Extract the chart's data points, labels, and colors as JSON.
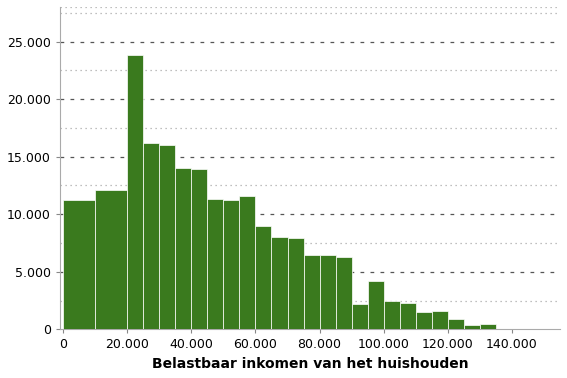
{
  "bar_left_edges": [
    0,
    10000,
    20000,
    25000,
    30000,
    35000,
    40000,
    45000,
    50000,
    55000,
    60000,
    65000,
    70000,
    75000,
    80000,
    85000,
    90000,
    95000,
    100000,
    105000,
    110000,
    115000,
    120000,
    125000,
    130000,
    135000,
    140000,
    145000,
    150000
  ],
  "bar_widths": [
    10000,
    10000,
    5000,
    5000,
    5000,
    5000,
    5000,
    5000,
    5000,
    5000,
    5000,
    5000,
    5000,
    5000,
    5000,
    5000,
    5000,
    5000,
    5000,
    5000,
    5000,
    5000,
    5000,
    5000,
    5000,
    5000,
    5000,
    5000,
    5000
  ],
  "bar_heights": [
    11200,
    12100,
    23800,
    16200,
    16000,
    14000,
    13900,
    11300,
    11200,
    11600,
    9000,
    8000,
    7900,
    6500,
    6500,
    6300,
    2200,
    4200,
    2500,
    2300,
    1500,
    1600,
    900,
    400,
    500,
    0,
    0,
    0,
    0
  ],
  "bar_color": "#3a7a1e",
  "bar_edgecolor": "#ffffff",
  "xlabel": "Belastbaar inkomen van het huishouden",
  "ylabel": "",
  "ylim": [
    0,
    28000
  ],
  "xlim": [
    -1000,
    155000
  ],
  "yticks": [
    0,
    5000,
    10000,
    15000,
    20000,
    25000
  ],
  "ytick_labels": [
    "0",
    "5.000",
    "10.000",
    "15.000",
    "20.000",
    "25.000"
  ],
  "xticks": [
    0,
    20000,
    40000,
    60000,
    80000,
    100000,
    120000,
    140000
  ],
  "xtick_labels": [
    "0",
    "20.000",
    "40.000",
    "60.000",
    "80.000",
    "100.000",
    "120.000",
    "140.000"
  ],
  "grid_yticks": [
    2500,
    7500,
    12500,
    17500,
    22500,
    27500
  ],
  "grid_color": "#aaaaaa",
  "background_color": "#ffffff",
  "xlabel_fontsize": 10,
  "tick_fontsize": 9
}
